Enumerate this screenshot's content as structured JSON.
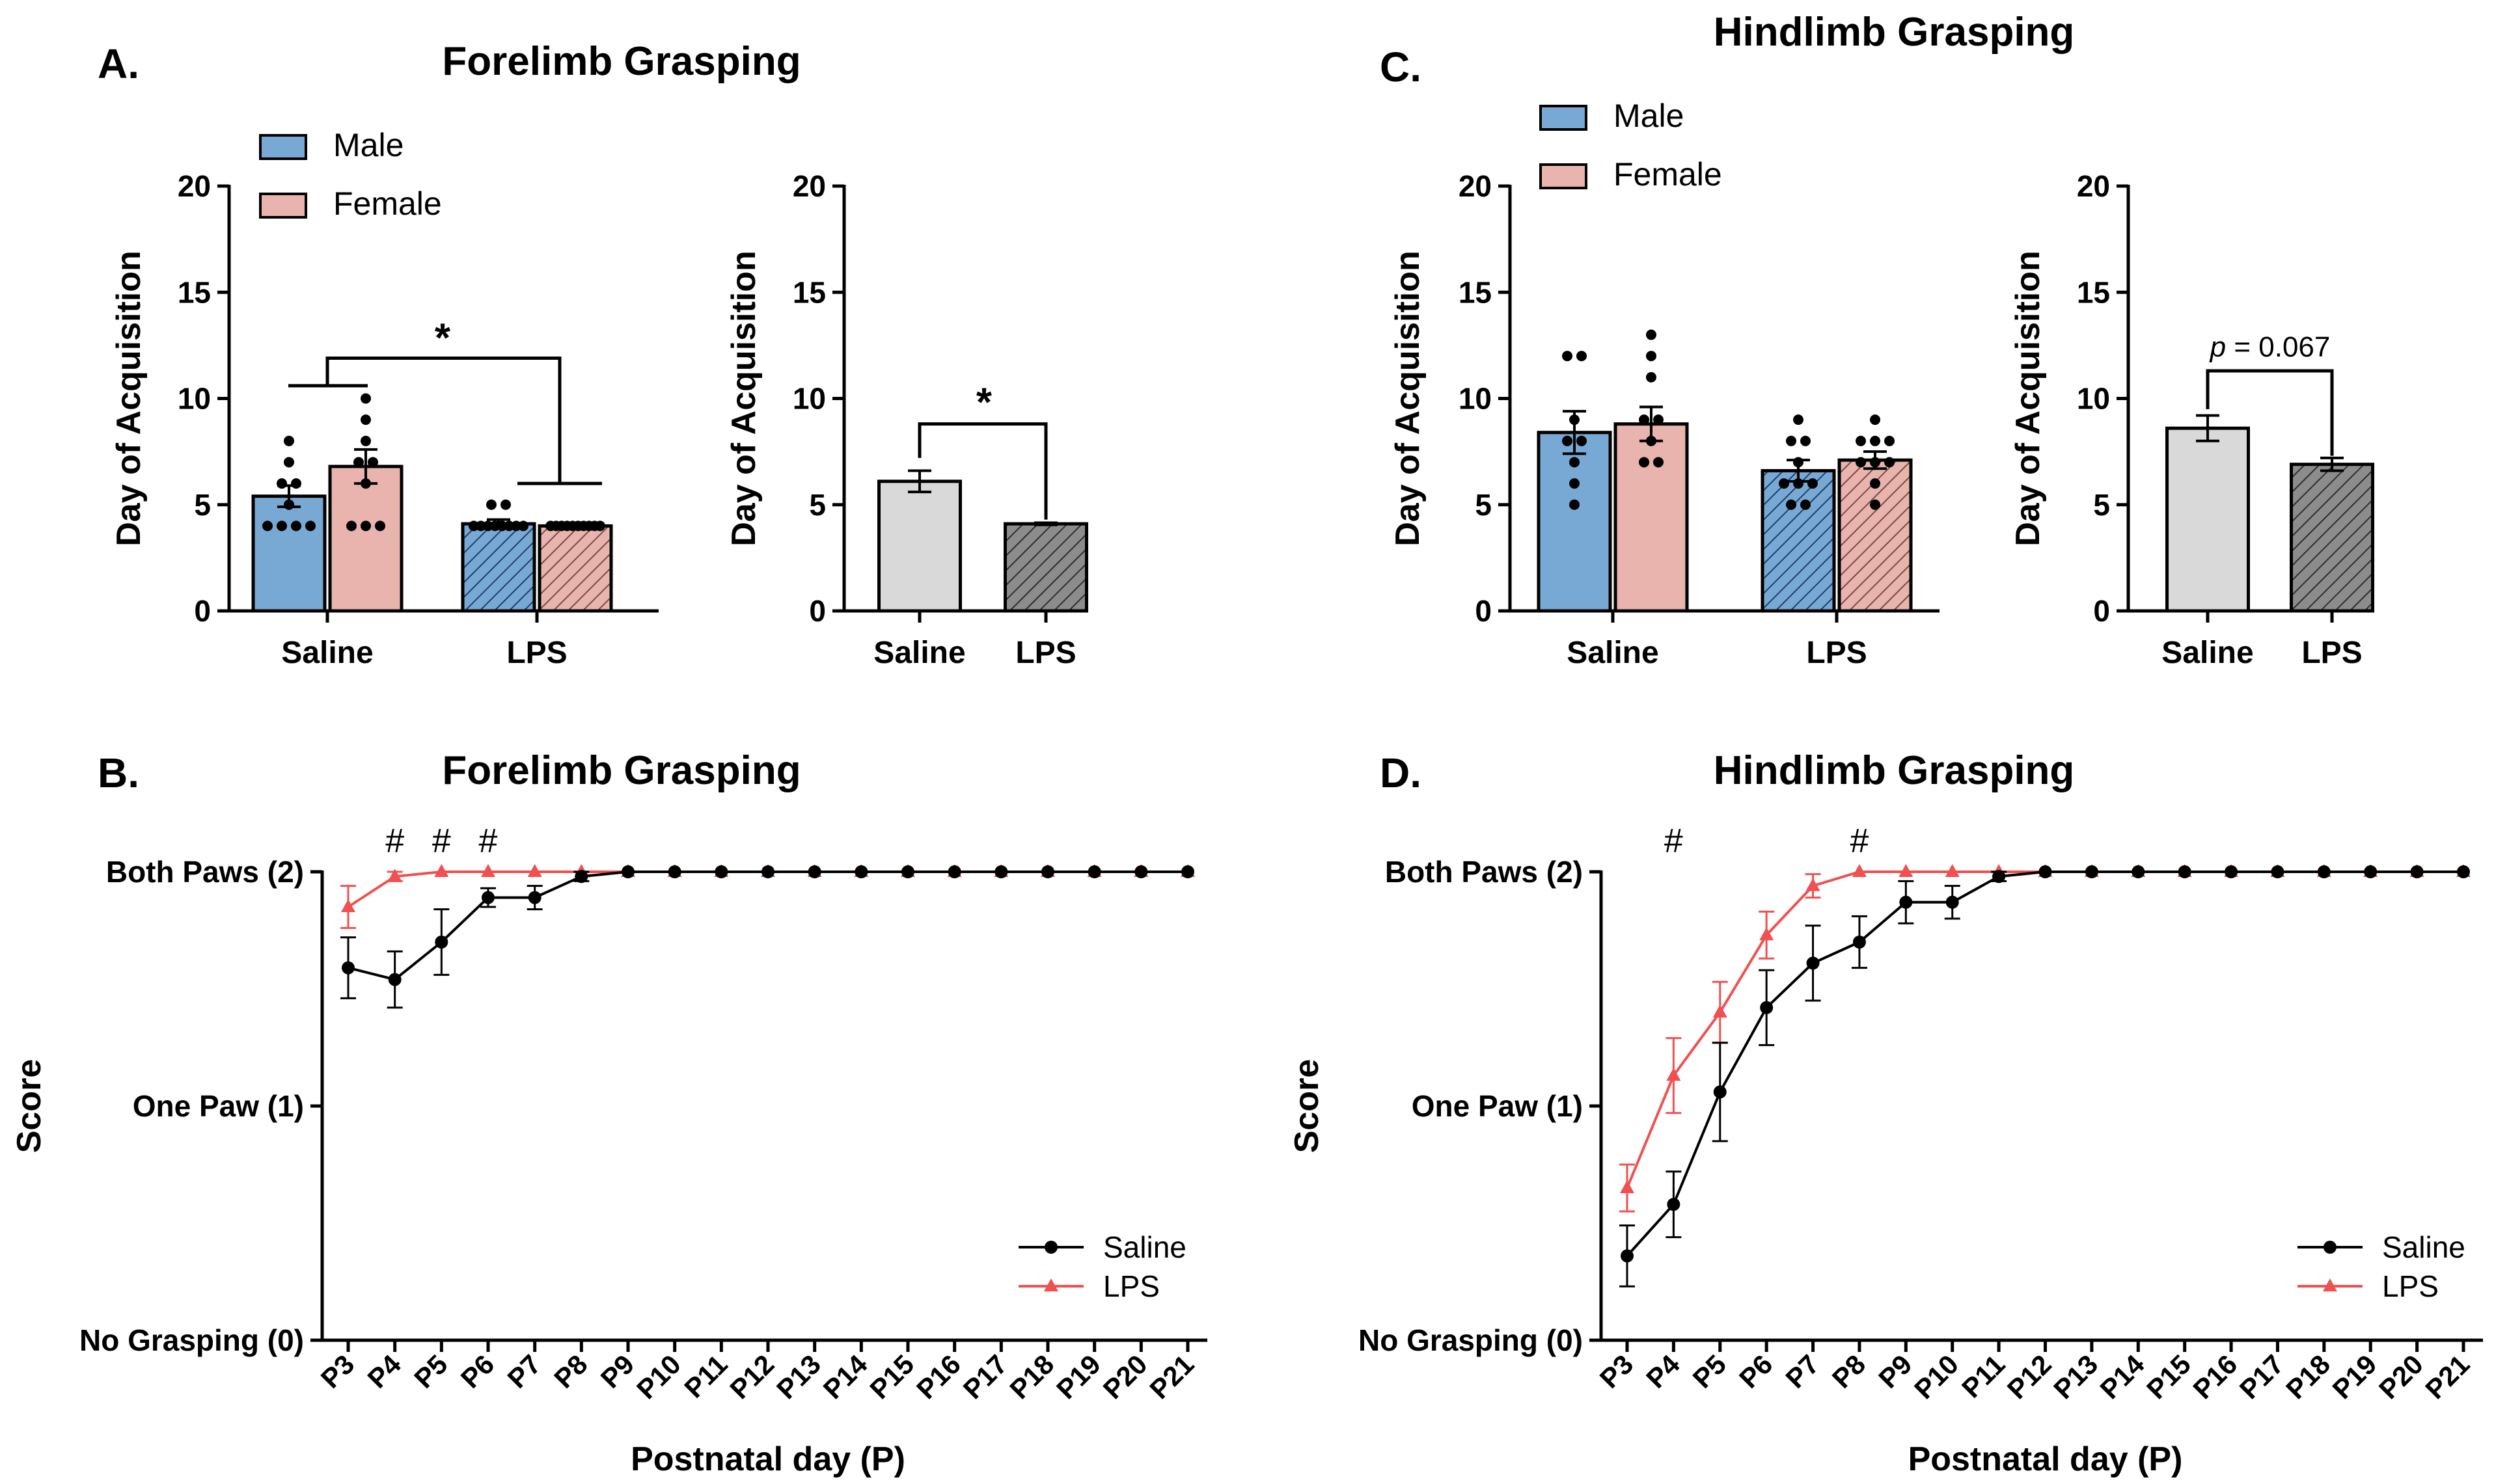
{
  "figure": {
    "panel_A": {
      "letter": "A.",
      "title": "Forelimb Grasping"
    },
    "panel_B": {
      "letter": "B.",
      "title": "Forelimb Grasping"
    },
    "panel_C": {
      "letter": "C.",
      "title": "Hindlimb Grasping"
    },
    "panel_D": {
      "letter": "D.",
      "title": "Hindlimb Grasping"
    }
  },
  "colors": {
    "male": "#78a9d4",
    "female": "#e8b4ad",
    "combined_saline": "#d9d9d9",
    "combined_lps": "#8c8c8c",
    "saline_line": "#000000",
    "lps_line": "#f05050"
  },
  "chart_data": [
    {
      "id": "A_left",
      "type": "bar",
      "title": "Forelimb Grasping",
      "ylabel": "Day of Acquisition",
      "ylim": [
        0,
        20
      ],
      "yticks": [
        0,
        5,
        10,
        15,
        20
      ],
      "categories": [
        "Saline",
        "LPS"
      ],
      "legend": [
        "Male",
        "Female"
      ],
      "series": [
        {
          "name": "Male",
          "means": [
            5.4,
            4.1
          ],
          "sem": [
            0.5,
            0.2
          ],
          "points": [
            [
              8,
              7,
              6,
              6,
              5,
              4,
              4,
              4,
              4
            ],
            [
              5,
              5,
              4,
              4,
              4,
              4,
              4,
              4,
              4,
              4
            ]
          ]
        },
        {
          "name": "Female",
          "means": [
            6.8,
            4.0
          ],
          "sem": [
            0.8,
            0.05
          ],
          "points": [
            [
              10,
              9,
              8,
              7,
              7,
              6,
              4,
              4,
              4
            ],
            [
              4,
              4,
              4,
              4,
              4,
              4,
              4,
              4,
              4,
              4
            ]
          ]
        }
      ],
      "significance": "*"
    },
    {
      "id": "A_right",
      "type": "bar",
      "ylabel": "Day of Acquisition",
      "ylim": [
        0,
        20
      ],
      "yticks": [
        0,
        5,
        10,
        15,
        20
      ],
      "categories": [
        "Saline",
        "LPS"
      ],
      "values": [
        6.1,
        4.1
      ],
      "sem": [
        0.5,
        0.05
      ],
      "significance": "*"
    },
    {
      "id": "C_left",
      "type": "bar",
      "title": "Hindlimb Grasping",
      "ylabel": "Day of Acquisition",
      "ylim": [
        0,
        20
      ],
      "yticks": [
        0,
        5,
        10,
        15,
        20
      ],
      "categories": [
        "Saline",
        "LPS"
      ],
      "legend": [
        "Male",
        "Female"
      ],
      "series": [
        {
          "name": "Male",
          "means": [
            8.4,
            6.6
          ],
          "sem": [
            1.0,
            0.5
          ],
          "points": [
            [
              12,
              12,
              9,
              8,
              8,
              7,
              6,
              5
            ],
            [
              9,
              8,
              8,
              7,
              6,
              6,
              6,
              5,
              5
            ]
          ]
        },
        {
          "name": "Female",
          "means": [
            8.8,
            7.1
          ],
          "sem": [
            0.8,
            0.4
          ],
          "points": [
            [
              13,
              12,
              11,
              9,
              9,
              8,
              7,
              7
            ],
            [
              9,
              8,
              8,
              8,
              7,
              7,
              7,
              6,
              5
            ]
          ]
        }
      ]
    },
    {
      "id": "C_right",
      "type": "bar",
      "ylabel": "Day of Acquisition",
      "ylim": [
        0,
        20
      ],
      "yticks": [
        0,
        5,
        10,
        15,
        20
      ],
      "categories": [
        "Saline",
        "LPS"
      ],
      "values": [
        8.6,
        6.9
      ],
      "sem": [
        0.6,
        0.3
      ],
      "annotation": {
        "p_label": "p",
        "p_value": " = 0.067"
      }
    },
    {
      "id": "B",
      "type": "line",
      "title": "Forelimb Grasping",
      "xlabel": "Postnatal day (P)",
      "ylabel": "Score",
      "ylim": [
        0,
        2
      ],
      "y_tick_labels": [
        "No Grasping (0)",
        "One Paw (1)",
        "Both Paws (2)"
      ],
      "x": [
        "P3",
        "P4",
        "P5",
        "P6",
        "P7",
        "P8",
        "P9",
        "P10",
        "P11",
        "P12",
        "P13",
        "P14",
        "P15",
        "P16",
        "P17",
        "P18",
        "P19",
        "P20",
        "P21"
      ],
      "series": [
        {
          "name": "Saline",
          "marker": "circle",
          "values": [
            1.59,
            1.54,
            1.7,
            1.89,
            1.89,
            1.98,
            2,
            2,
            2,
            2,
            2,
            2,
            2,
            2,
            2,
            2,
            2,
            2,
            2
          ],
          "sem": [
            0.13,
            0.12,
            0.14,
            0.04,
            0.05,
            0.02,
            0,
            0,
            0,
            0,
            0,
            0,
            0,
            0,
            0,
            0,
            0,
            0,
            0
          ]
        },
        {
          "name": "LPS",
          "marker": "triangle",
          "values": [
            1.85,
            1.98,
            2,
            2,
            2,
            2,
            2,
            2,
            2,
            2,
            2,
            2,
            2,
            2,
            2,
            2,
            2,
            2,
            2
          ],
          "sem": [
            0.09,
            0.02,
            0,
            0,
            0,
            0,
            0,
            0,
            0,
            0,
            0,
            0,
            0,
            0,
            0,
            0,
            0,
            0,
            0
          ]
        }
      ],
      "hash_marks": [
        "P4",
        "P5",
        "P6"
      ],
      "hash_symbol": "#"
    },
    {
      "id": "D",
      "type": "line",
      "title": "Hindlimb Grasping",
      "xlabel": "Postnatal day (P)",
      "ylabel": "Score",
      "ylim": [
        0,
        2
      ],
      "y_tick_labels": [
        "No Grasping (0)",
        "One Paw (1)",
        "Both Paws (2)"
      ],
      "x": [
        "P3",
        "P4",
        "P5",
        "P6",
        "P7",
        "P8",
        "P9",
        "P10",
        "P11",
        "P12",
        "P13",
        "P14",
        "P15",
        "P16",
        "P17",
        "P18",
        "P19",
        "P20",
        "P21"
      ],
      "series": [
        {
          "name": "Saline",
          "marker": "circle",
          "values": [
            0.36,
            0.58,
            1.06,
            1.42,
            1.61,
            1.7,
            1.87,
            1.87,
            1.98,
            2,
            2,
            2,
            2,
            2,
            2,
            2,
            2,
            2,
            2
          ],
          "sem": [
            0.13,
            0.14,
            0.21,
            0.16,
            0.16,
            0.11,
            0.09,
            0.07,
            0.02,
            0,
            0,
            0,
            0,
            0,
            0,
            0,
            0,
            0,
            0
          ]
        },
        {
          "name": "LPS",
          "marker": "triangle",
          "values": [
            0.65,
            1.13,
            1.4,
            1.73,
            1.94,
            2,
            2,
            2,
            2,
            2,
            2,
            2,
            2,
            2,
            2,
            2,
            2,
            2,
            2
          ],
          "sem": [
            0.1,
            0.16,
            0.13,
            0.1,
            0.05,
            0,
            0,
            0,
            0,
            0,
            0,
            0,
            0,
            0,
            0,
            0,
            0,
            0,
            0
          ]
        }
      ],
      "hash_marks": [
        "P4",
        "P8"
      ],
      "hash_symbol": "#"
    }
  ]
}
